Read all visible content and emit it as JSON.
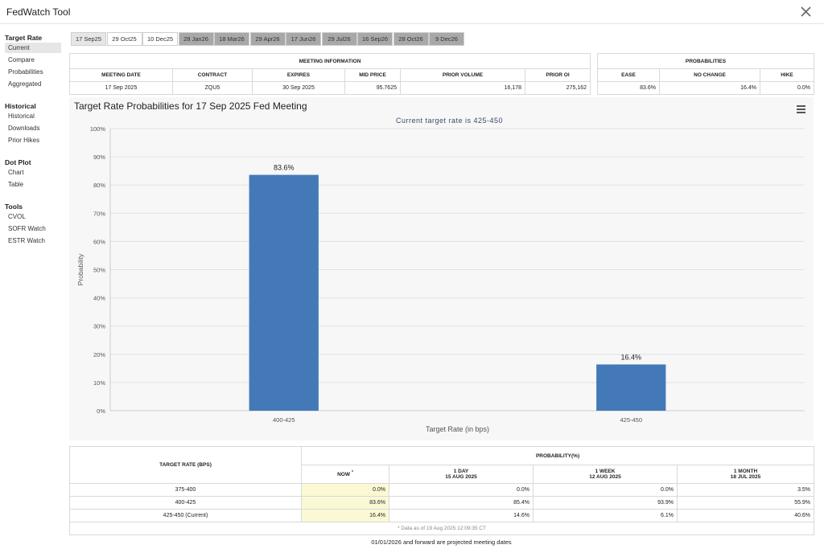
{
  "header": {
    "title": "FedWatch Tool"
  },
  "sidebar": [
    {
      "heading": "Target Rate",
      "items": [
        "Current",
        "Compare",
        "Probabilities",
        "Aggregated"
      ]
    },
    {
      "heading": "Historical",
      "items": [
        "Historical",
        "Downloads",
        "Prior Hikes"
      ]
    },
    {
      "heading": "Dot Plot",
      "items": [
        "Chart",
        "Table"
      ]
    },
    {
      "heading": "Tools",
      "items": [
        "CVOL",
        "SOFR Watch",
        "ESTR Watch"
      ]
    }
  ],
  "tabs": [
    "17 Sep25",
    "29 Oct25",
    "10 Dec25",
    "28 Jan26",
    "18 Mar26",
    "29 Apr26",
    "17 Jun26",
    "29 Jul26",
    "16 Sep26",
    "28 Oct26",
    "9 Dec26"
  ],
  "meeting_info": {
    "title": "MEETING INFORMATION",
    "columns": [
      "MEETING DATE",
      "CONTRACT",
      "EXPIRES",
      "MID PRICE",
      "PRIOR VOLUME",
      "PRIOR OI"
    ],
    "row": [
      "17 Sep 2025",
      "ZQU5",
      "30 Sep 2025",
      "95.7625",
      "16,178",
      "275,162"
    ]
  },
  "probabilities": {
    "title": "PROBABILITIES",
    "columns": [
      "EASE",
      "NO CHANGE",
      "HIKE"
    ],
    "row": [
      "83.6%",
      "16.4%",
      "0.0%"
    ]
  },
  "chart_data": {
    "type": "bar",
    "title": "Target Rate Probabilities for 17 Sep 2025 Fed Meeting",
    "subtitle": "Current target rate is 425-450",
    "x_label": "Target Rate (in bps)",
    "y_label": "Probability",
    "categories": [
      "400-425",
      "425-450"
    ],
    "values": [
      83.6,
      16.4
    ],
    "value_labels": [
      "83.6%",
      "16.4%"
    ],
    "color": "#4479b8",
    "ylim": [
      0,
      100
    ],
    "yticks": [
      {
        "value": 0,
        "label": "0%"
      },
      {
        "value": 10,
        "label": "10%"
      },
      {
        "value": 20,
        "label": "20%"
      },
      {
        "value": 30,
        "label": "30%"
      },
      {
        "value": 40,
        "label": "40%"
      },
      {
        "value": 50,
        "label": "50%"
      },
      {
        "value": 60,
        "label": "60%"
      },
      {
        "value": 70,
        "label": "70%"
      },
      {
        "value": 80,
        "label": "80%"
      },
      {
        "value": 90,
        "label": "90%"
      },
      {
        "value": 100,
        "label": "100%"
      }
    ],
    "grid": true
  },
  "table": {
    "row_header": "TARGET RATE (BPS)",
    "group_header": "PROBABILITY(%)",
    "columns": [
      {
        "label": "NOW",
        "mark": "*"
      },
      {
        "label": "1 DAY",
        "date": "15 AUG 2025"
      },
      {
        "label": "1 WEEK",
        "date": "12 AUG 2025"
      },
      {
        "label": "1 MONTH",
        "date": "18 JUL 2025"
      }
    ],
    "rows": [
      [
        "375-400",
        "0.0%",
        "0.0%",
        "0.0%",
        "3.5%"
      ],
      [
        "400-425",
        "83.6%",
        "85.4%",
        "93.9%",
        "55.9%"
      ],
      [
        "425-450 (Current)",
        "16.4%",
        "14.6%",
        "6.1%",
        "40.6%"
      ]
    ],
    "note": "* Data as of 19 Aug 2025 12:09:35 CT"
  },
  "footer": "01/01/2026 and forward are projected meeting dates"
}
